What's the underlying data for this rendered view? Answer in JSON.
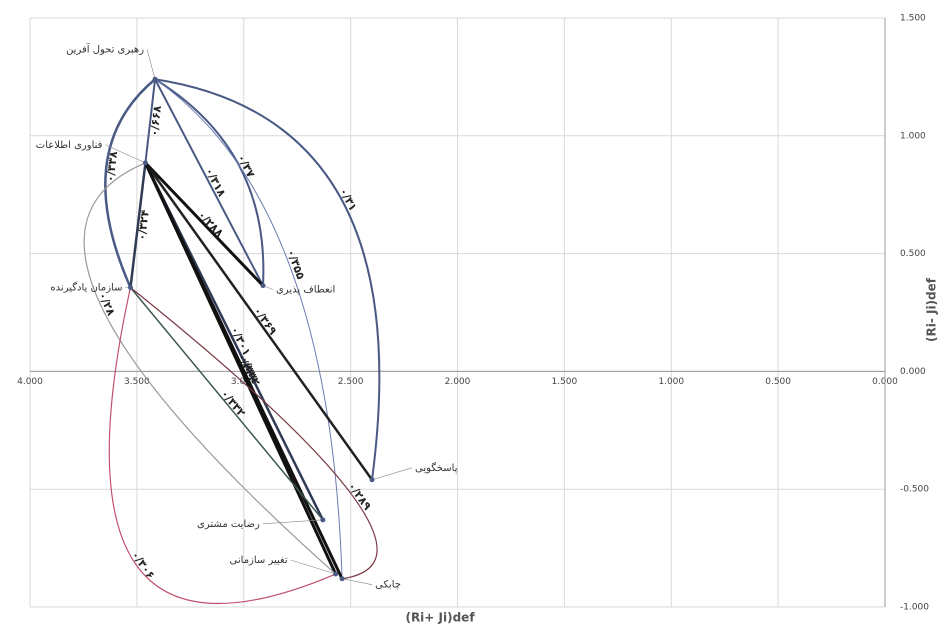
{
  "chart_data": {
    "type": "scatter",
    "x_label": "(Ri+ Ji)def",
    "y_label": "(Ri- Ji)def",
    "xlim": [
      4,
      0
    ],
    "ylim": [
      -1,
      1.5
    ],
    "xticks": [
      {
        "value": 4,
        "label": "4.000"
      },
      {
        "value": 3.5,
        "label": "3.500"
      },
      {
        "value": 3,
        "label": "3.000"
      },
      {
        "value": 2.5,
        "label": "2.500"
      },
      {
        "value": 2,
        "label": "2.000"
      },
      {
        "value": 1.5,
        "label": "1.500"
      },
      {
        "value": 1,
        "label": "1.000"
      },
      {
        "value": 0.5,
        "label": "0.500"
      },
      {
        "value": 0,
        "label": "0.000"
      }
    ],
    "yticks": [
      {
        "value": 1.5,
        "label": "1.500"
      },
      {
        "value": 1,
        "label": "1.000"
      },
      {
        "value": 0.5,
        "label": "0.500"
      },
      {
        "value": 0,
        "label": "0.000"
      },
      {
        "value": -0.5,
        "label": "-0.500"
      },
      {
        "value": -1,
        "label": "-1.000"
      }
    ],
    "grid": true,
    "points": [
      {
        "label": "رهبری تحول آفرین",
        "x": 3.415,
        "y": 1.24
      },
      {
        "label": "فناوری اطلاعات",
        "x": 3.46,
        "y": 0.885
      },
      {
        "label": "سازمان یادگیرنده",
        "x": 3.53,
        "y": 0.356
      },
      {
        "label": "انعطاف پذیری",
        "x": 2.91,
        "y": 0.364
      },
      {
        "label": "پاسخگویی",
        "x": 2.4,
        "y": -0.46
      },
      {
        "label": "رضایت مشتری",
        "x": 2.63,
        "y": -0.63
      },
      {
        "label": "تغییر سازمانی",
        "x": 2.57,
        "y": -0.86
      },
      {
        "label": "چابکی",
        "x": 2.54,
        "y": -0.88
      }
    ],
    "edges": [
      {
        "from": 0,
        "to": 2,
        "label": "۰/۳۳۸"
      },
      {
        "from": 0,
        "to": 1,
        "label": "۰/۶۶۸"
      },
      {
        "from": 0,
        "to": 3,
        "label": "۰/۳۷"
      },
      {
        "from": 0,
        "to": 3,
        "label": "۰/۳۱۸"
      },
      {
        "from": 0,
        "to": 4,
        "label": "۰/۳۱"
      },
      {
        "from": 0,
        "to": 7,
        "label": "۰/۳۵۵"
      },
      {
        "from": 1,
        "to": 2,
        "label": "۰/۳۲۴"
      },
      {
        "from": 1,
        "to": 3,
        "label": "۰/۲۸۸"
      },
      {
        "from": 1,
        "to": 4,
        "label": "۰/۳۶۹"
      },
      {
        "from": 1,
        "to": 5,
        "label": "۰/۳۰۱"
      },
      {
        "from": 1,
        "to": 6,
        "label": "۰/۳۳۲"
      },
      {
        "from": 1,
        "to": 7,
        "label": "۰/۳۳۲"
      },
      {
        "from": 1,
        "to": 6,
        "label": "۰/۲۸"
      },
      {
        "from": 2,
        "to": 6,
        "label": "۰/۳۰۶"
      },
      {
        "from": 2,
        "to": 5,
        "label": "۰/۳۳۲"
      },
      {
        "from": 2,
        "to": 7,
        "label": "۰/۲۸۹"
      }
    ]
  }
}
